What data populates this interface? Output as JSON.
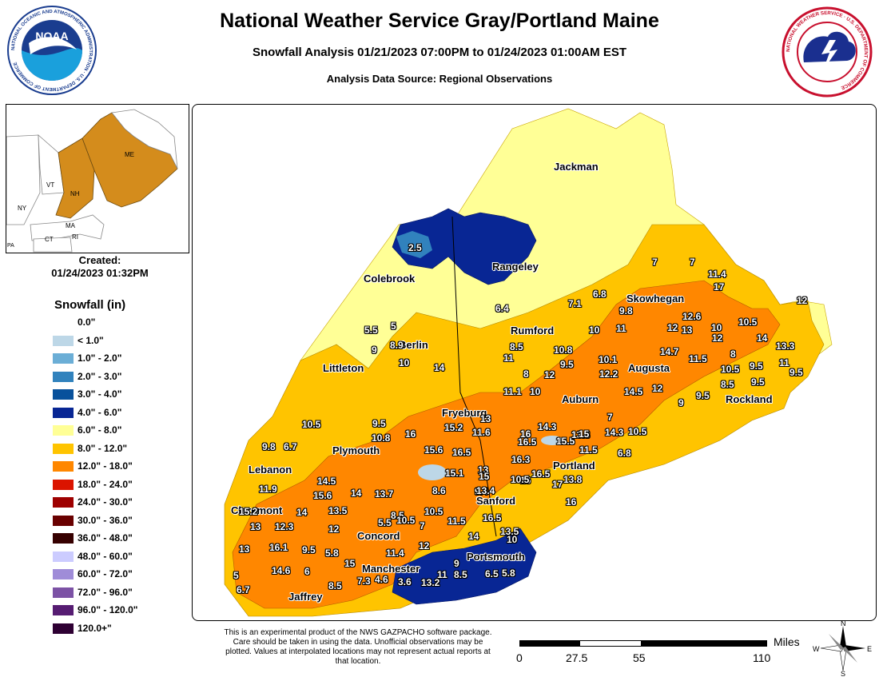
{
  "header": {
    "title": "National Weather Service Gray/Portland Maine",
    "subtitle": "Snowfall Analysis 01/21/2023 07:00PM to 01/24/2023 01:00AM EST",
    "source": "Analysis Data Source: Regional Observations"
  },
  "logos": {
    "noaa_text": "NOAA",
    "noaa_ring": "NATIONAL OCEANIC AND ATMOSPHERIC ADMINISTRATION · U.S. DEPARTMENT OF COMMERCE",
    "nws_ring": "NATIONAL WEATHER SERVICE · U.S. DEPARTMENT OF COMMERCE"
  },
  "inset": {
    "labels": [
      "ME",
      "VT",
      "NH",
      "NY",
      "MA",
      "CT",
      "RI",
      "PA"
    ]
  },
  "created": {
    "label": "Created:",
    "value": "01/24/2023 01:32PM"
  },
  "legend": {
    "title": "Snowfall (in)",
    "items": [
      {
        "label": "0.0\"",
        "color": "#ffffff"
      },
      {
        "label": "< 1.0\"",
        "color": "#bdd7e7"
      },
      {
        "label": "1.0\" - 2.0\"",
        "color": "#6baed6"
      },
      {
        "label": "2.0\" - 3.0\"",
        "color": "#3182bd"
      },
      {
        "label": "3.0\" - 4.0\"",
        "color": "#08519c"
      },
      {
        "label": "4.0\" - 6.0\"",
        "color": "#082694"
      },
      {
        "label": "6.0\" - 8.0\"",
        "color": "#ffff96"
      },
      {
        "label": "8.0\" - 12.0\"",
        "color": "#ffc400"
      },
      {
        "label": "12.0\" - 18.0\"",
        "color": "#ff8700"
      },
      {
        "label": "18.0\" - 24.0\"",
        "color": "#db1400"
      },
      {
        "label": "24.0\" - 30.0\"",
        "color": "#9e0000"
      },
      {
        "label": "30.0\" - 36.0\"",
        "color": "#690000"
      },
      {
        "label": "36.0\" - 48.0\"",
        "color": "#360000"
      },
      {
        "label": "48.0\" - 60.0\"",
        "color": "#ccccff"
      },
      {
        "label": "60.0\" - 72.0\"",
        "color": "#9f8cd8"
      },
      {
        "label": "72.0\" - 96.0\"",
        "color": "#7c52a5"
      },
      {
        "label": "96.0\" - 120.0\"",
        "color": "#561c72"
      },
      {
        "label": "120.0+\"",
        "color": "#2e0033"
      }
    ]
  },
  "map": {
    "cities": [
      "Jackman",
      "Rangeley",
      "Colebrook",
      "Skowhegan",
      "Rumford",
      "Berlin",
      "Augusta",
      "Littleton",
      "Rockland",
      "Auburn",
      "Fryeburg",
      "Plymouth",
      "Portland",
      "Lebanon",
      "Sanford",
      "Claremont",
      "Concord",
      "Portsmouth",
      "Manchester",
      "Jaffrey"
    ],
    "values": [
      "2.5",
      "7",
      "7",
      "11.4",
      "17",
      "6.4",
      "7.1",
      "6.8",
      "12",
      "9.8",
      "5.5",
      "5",
      "8.9",
      "9",
      "10",
      "11",
      "12",
      "12.6",
      "13",
      "10",
      "10.5",
      "12",
      "14",
      "13.3",
      "10",
      "14",
      "11",
      "8.5",
      "10.8",
      "9.5",
      "10.1",
      "14.7",
      "11.5",
      "8",
      "10.5",
      "9.5",
      "11",
      "8",
      "12",
      "12.2",
      "9.5",
      "8.5",
      "9.5",
      "11.1",
      "10",
      "14.5",
      "12",
      "9",
      "9.5",
      "10.5",
      "9.5",
      "10.8",
      "16",
      "15.2",
      "11.6",
      "13",
      "16",
      "14.3",
      "16.5",
      "15.5",
      "13.3",
      "7",
      "15",
      "14.3",
      "10.5",
      "6.8",
      "11.5",
      "9.8",
      "6.7",
      "15.6",
      "16.5",
      "16.3",
      "13",
      "16.5",
      "15",
      "15.1",
      "16",
      "9.4",
      "11.9",
      "14.5",
      "15.6",
      "14",
      "13.7",
      "8.6",
      "13.4",
      "10.5",
      "17",
      "13.8",
      "15.2",
      "14",
      "13.5",
      "8.5",
      "10.5",
      "11.5",
      "16",
      "13",
      "12.3",
      "12",
      "5.5",
      "10.5",
      "7",
      "16.5",
      "13.5",
      "14",
      "10",
      "13",
      "16.1",
      "9.5",
      "5.8",
      "15",
      "11.4",
      "12",
      "9",
      "5",
      "14.6",
      "6",
      "7.3",
      "4.6",
      "3.6",
      "13.2",
      "11",
      "8.5",
      "6.5",
      "5.8",
      "6.7",
      "8.5"
    ]
  },
  "footer": {
    "disclaimer": "This is an experimental product of the NWS GAZPACHO software package. Care should be taken in using the data. Unofficial observations may be plotted. Values at interpolated locations may not represent actual reports at that location.",
    "scale_unit": "Miles",
    "scale_ticks": [
      "0",
      "27.5",
      "55",
      "110"
    ],
    "compass": [
      "N",
      "W",
      "E",
      "S"
    ]
  }
}
